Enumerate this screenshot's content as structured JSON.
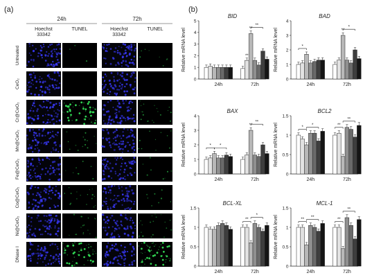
{
  "figure": {
    "panel_a": {
      "label": "(a)",
      "timepoints": [
        "24h",
        "72h"
      ],
      "stains": [
        [
          "Hoechst",
          "33342"
        ],
        "TUNEL"
      ],
      "rows": [
        "Untreated",
        "CeO₂",
        "Cr@CeO₂",
        "Mn@CeO₂",
        "Fe@CeO₂",
        "Co@CeO₂",
        "Ni@CeO₂",
        "DNase I"
      ],
      "tunel_signal": [
        [
          0.05,
          0.15
        ],
        [
          0.0,
          0.0
        ],
        [
          1.0,
          0.35
        ],
        [
          0.25,
          0.2
        ],
        [
          0.15,
          0.15
        ],
        [
          0.3,
          0.15
        ],
        [
          0.3,
          0.35
        ],
        [
          1.0,
          1.0
        ]
      ],
      "colors": {
        "nuclei": "#3a3aff",
        "tunel": "#33dd55",
        "background": "#04040a"
      }
    },
    "panel_b": {
      "label": "(b)",
      "colors": [
        "#ffffff",
        "#e2e2e2",
        "#b8b8b8",
        "#909090",
        "#6a6a6a",
        "#3e3e3e",
        "#151515"
      ]
    }
  },
  "chart_data": [
    {
      "type": "bar",
      "title": "BID",
      "categories": [
        "24h",
        "72h"
      ],
      "ylabel": "Relative mRNA level",
      "ylim": [
        0,
        5
      ],
      "yticks": [
        0,
        1,
        2,
        3,
        4,
        5
      ],
      "series": [
        {
          "values": [
            1.0,
            0.9
          ]
        },
        {
          "values": [
            1.1,
            1.6
          ]
        },
        {
          "values": [
            1.0,
            3.9
          ]
        },
        {
          "values": [
            1.0,
            1.6
          ]
        },
        {
          "values": [
            1.0,
            1.2
          ]
        },
        {
          "values": [
            1.0,
            2.4
          ]
        },
        {
          "values": [
            1.0,
            1.7
          ]
        }
      ],
      "annotations": [
        {
          "group": 1,
          "series": 1,
          "text": "**"
        },
        {
          "group": 1,
          "series": 2,
          "text": "**"
        },
        {
          "group": 1,
          "from": 2,
          "to": 5,
          "text": "**"
        }
      ]
    },
    {
      "type": "bar",
      "title": "BAD",
      "categories": [
        "24h",
        "72h"
      ],
      "ylabel": "Relative mRNA level",
      "ylim": [
        0,
        4
      ],
      "yticks": [
        0,
        1,
        2,
        3,
        4
      ],
      "series": [
        {
          "values": [
            1.0,
            1.0
          ]
        },
        {
          "values": [
            1.1,
            1.3
          ]
        },
        {
          "values": [
            1.7,
            3.0
          ]
        },
        {
          "values": [
            1.1,
            1.3
          ]
        },
        {
          "values": [
            1.2,
            1.1
          ]
        },
        {
          "values": [
            1.3,
            2.0
          ]
        },
        {
          "values": [
            1.3,
            1.4
          ]
        }
      ],
      "annotations": [
        {
          "group": 0,
          "from": 0,
          "to": 2,
          "text": "*"
        },
        {
          "group": 1,
          "series": 2,
          "text": "**"
        },
        {
          "group": 1,
          "from": 2,
          "to": 5,
          "text": "*"
        }
      ]
    },
    {
      "type": "bar",
      "title": "BAX",
      "categories": [
        "24h",
        "72h"
      ],
      "ylabel": "Relative mRNA level",
      "ylim": [
        0,
        4
      ],
      "yticks": [
        0,
        1,
        2,
        3,
        4
      ],
      "series": [
        {
          "values": [
            1.0,
            1.0
          ]
        },
        {
          "values": [
            1.1,
            1.3
          ]
        },
        {
          "values": [
            1.4,
            3.0
          ]
        },
        {
          "values": [
            1.1,
            1.3
          ]
        },
        {
          "values": [
            1.1,
            1.2
          ]
        },
        {
          "values": [
            1.3,
            2.0
          ]
        },
        {
          "values": [
            1.2,
            1.4
          ]
        }
      ],
      "annotations": [
        {
          "group": 0,
          "from": 0,
          "to": 2,
          "text": "*"
        },
        {
          "group": 0,
          "from": 2,
          "to": 5,
          "text": "*"
        },
        {
          "group": 1,
          "series": 2,
          "text": "**"
        },
        {
          "group": 1,
          "from": 2,
          "to": 5,
          "text": "**"
        }
      ]
    },
    {
      "type": "bar",
      "title": "BCL2",
      "categories": [
        "24h",
        "72h"
      ],
      "ylabel": "Relative mRNA level",
      "ylim": [
        0,
        1.5
      ],
      "yticks": [
        0,
        0.5,
        1,
        1.5
      ],
      "series": [
        {
          "values": [
            1.0,
            1.0
          ]
        },
        {
          "values": [
            0.9,
            1.05
          ]
        },
        {
          "values": [
            0.75,
            0.45
          ]
        },
        {
          "values": [
            1.05,
            1.2
          ]
        },
        {
          "values": [
            1.05,
            1.15
          ]
        },
        {
          "values": [
            0.85,
            0.95
          ]
        },
        {
          "values": [
            1.1,
            1.25
          ]
        }
      ],
      "annotations": [
        {
          "group": 0,
          "from": 0,
          "to": 2,
          "text": "*"
        },
        {
          "group": 0,
          "from": 2,
          "to": 5,
          "text": "*"
        },
        {
          "group": 1,
          "from": 0,
          "to": 2,
          "text": "**"
        },
        {
          "group": 1,
          "from": 2,
          "to": 5,
          "text": "**"
        }
      ]
    },
    {
      "type": "bar",
      "title": "BCL-XL",
      "categories": [
        "24h",
        "72h"
      ],
      "ylabel": "Relative mRNA level",
      "ylim": [
        0,
        1.5
      ],
      "yticks": [
        0,
        0.5,
        1,
        1.5
      ],
      "series": [
        {
          "values": [
            1.0,
            1.0
          ]
        },
        {
          "values": [
            0.95,
            1.0
          ]
        },
        {
          "values": [
            0.95,
            0.6
          ]
        },
        {
          "values": [
            1.05,
            1.1
          ]
        },
        {
          "values": [
            1.1,
            1.0
          ]
        },
        {
          "values": [
            1.05,
            0.9
          ]
        },
        {
          "values": [
            0.95,
            1.05
          ]
        }
      ],
      "annotations": [
        {
          "group": 1,
          "from": 0,
          "to": 2,
          "text": "**"
        },
        {
          "group": 1,
          "from": 2,
          "to": 5,
          "text": "*"
        }
      ]
    },
    {
      "type": "bar",
      "title": "MCL-1",
      "categories": [
        "24h",
        "72h"
      ],
      "ylabel": "Relative mRNA level",
      "ylim": [
        0,
        1.5
      ],
      "yticks": [
        0,
        0.5,
        1,
        1.5
      ],
      "series": [
        {
          "values": [
            1.0,
            1.0
          ]
        },
        {
          "values": [
            1.0,
            1.0
          ]
        },
        {
          "values": [
            0.55,
            0.45
          ]
        },
        {
          "values": [
            1.05,
            1.25
          ]
        },
        {
          "values": [
            1.0,
            1.05
          ]
        },
        {
          "values": [
            0.9,
            0.7
          ]
        },
        {
          "values": [
            1.1,
            1.2
          ]
        }
      ],
      "annotations": [
        {
          "group": 0,
          "from": 0,
          "to": 2,
          "text": "**"
        },
        {
          "group": 0,
          "from": 2,
          "to": 5,
          "text": "**"
        },
        {
          "group": 1,
          "from": 0,
          "to": 2,
          "text": "**"
        },
        {
          "group": 1,
          "from": 2,
          "to": 5,
          "text": "**"
        }
      ]
    }
  ]
}
